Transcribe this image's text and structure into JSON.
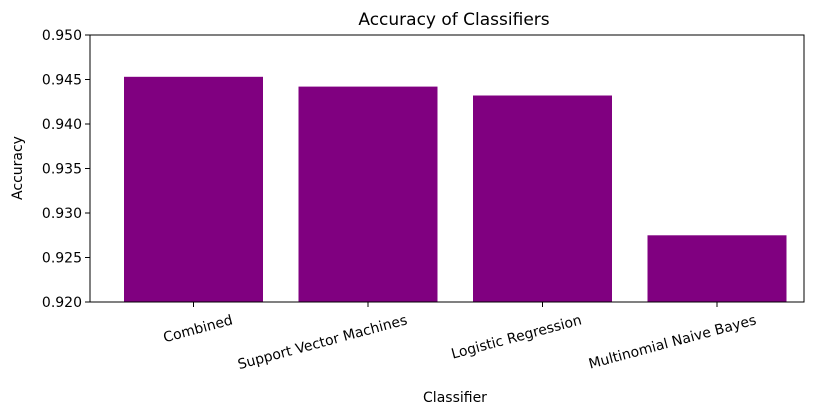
{
  "chart_data": {
    "type": "bar",
    "title": "Accuracy of Classifiers",
    "xlabel": "Classifier",
    "ylabel": "Accuracy",
    "categories": [
      "Combined",
      "Support Vector Machines",
      "Logistic Regression",
      "Multinomial Naive Bayes"
    ],
    "values": [
      0.9453,
      0.9442,
      0.9432,
      0.9275
    ],
    "ylim": [
      0.92,
      0.95
    ],
    "yticks": [
      "0.920",
      "0.925",
      "0.930",
      "0.935",
      "0.940",
      "0.945",
      "0.950"
    ],
    "bar_color": "#800080",
    "grid": false,
    "xtick_rotation_deg": 15
  }
}
